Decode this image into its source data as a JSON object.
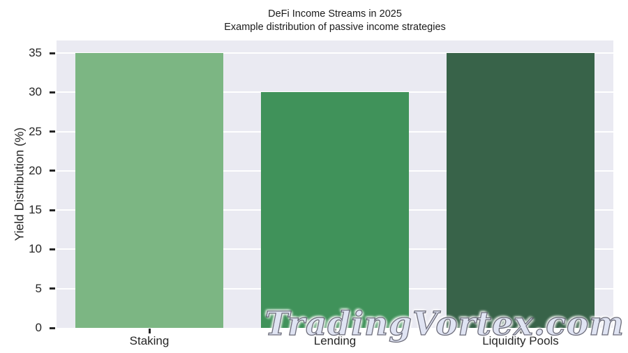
{
  "chart_data": {
    "type": "bar",
    "title": "DeFi Income Streams in 2025",
    "subtitle": "Example distribution of passive income strategies",
    "categories": [
      "Staking",
      "Lending",
      "Liquidity Pools"
    ],
    "values": [
      35,
      30,
      35
    ],
    "bar_colors": [
      "#7cb683",
      "#40925a",
      "#386349"
    ],
    "xlabel": "",
    "ylabel": "Yield Distribution (%)",
    "yticks": [
      0,
      5,
      10,
      15,
      20,
      25,
      30,
      35
    ],
    "ylim": [
      0,
      36.6
    ],
    "bar_width_fraction": 0.8,
    "grid": "horizontal",
    "grid_color": "#ffffff",
    "plot_background": "#eaeaf2",
    "figure_background": "#ffffff",
    "text_color": "#262626",
    "legend": "none"
  },
  "watermark": {
    "text": "TradingVortex.com",
    "fill_color": "#d0d5ec",
    "outline_color": "#4b4b5a"
  }
}
